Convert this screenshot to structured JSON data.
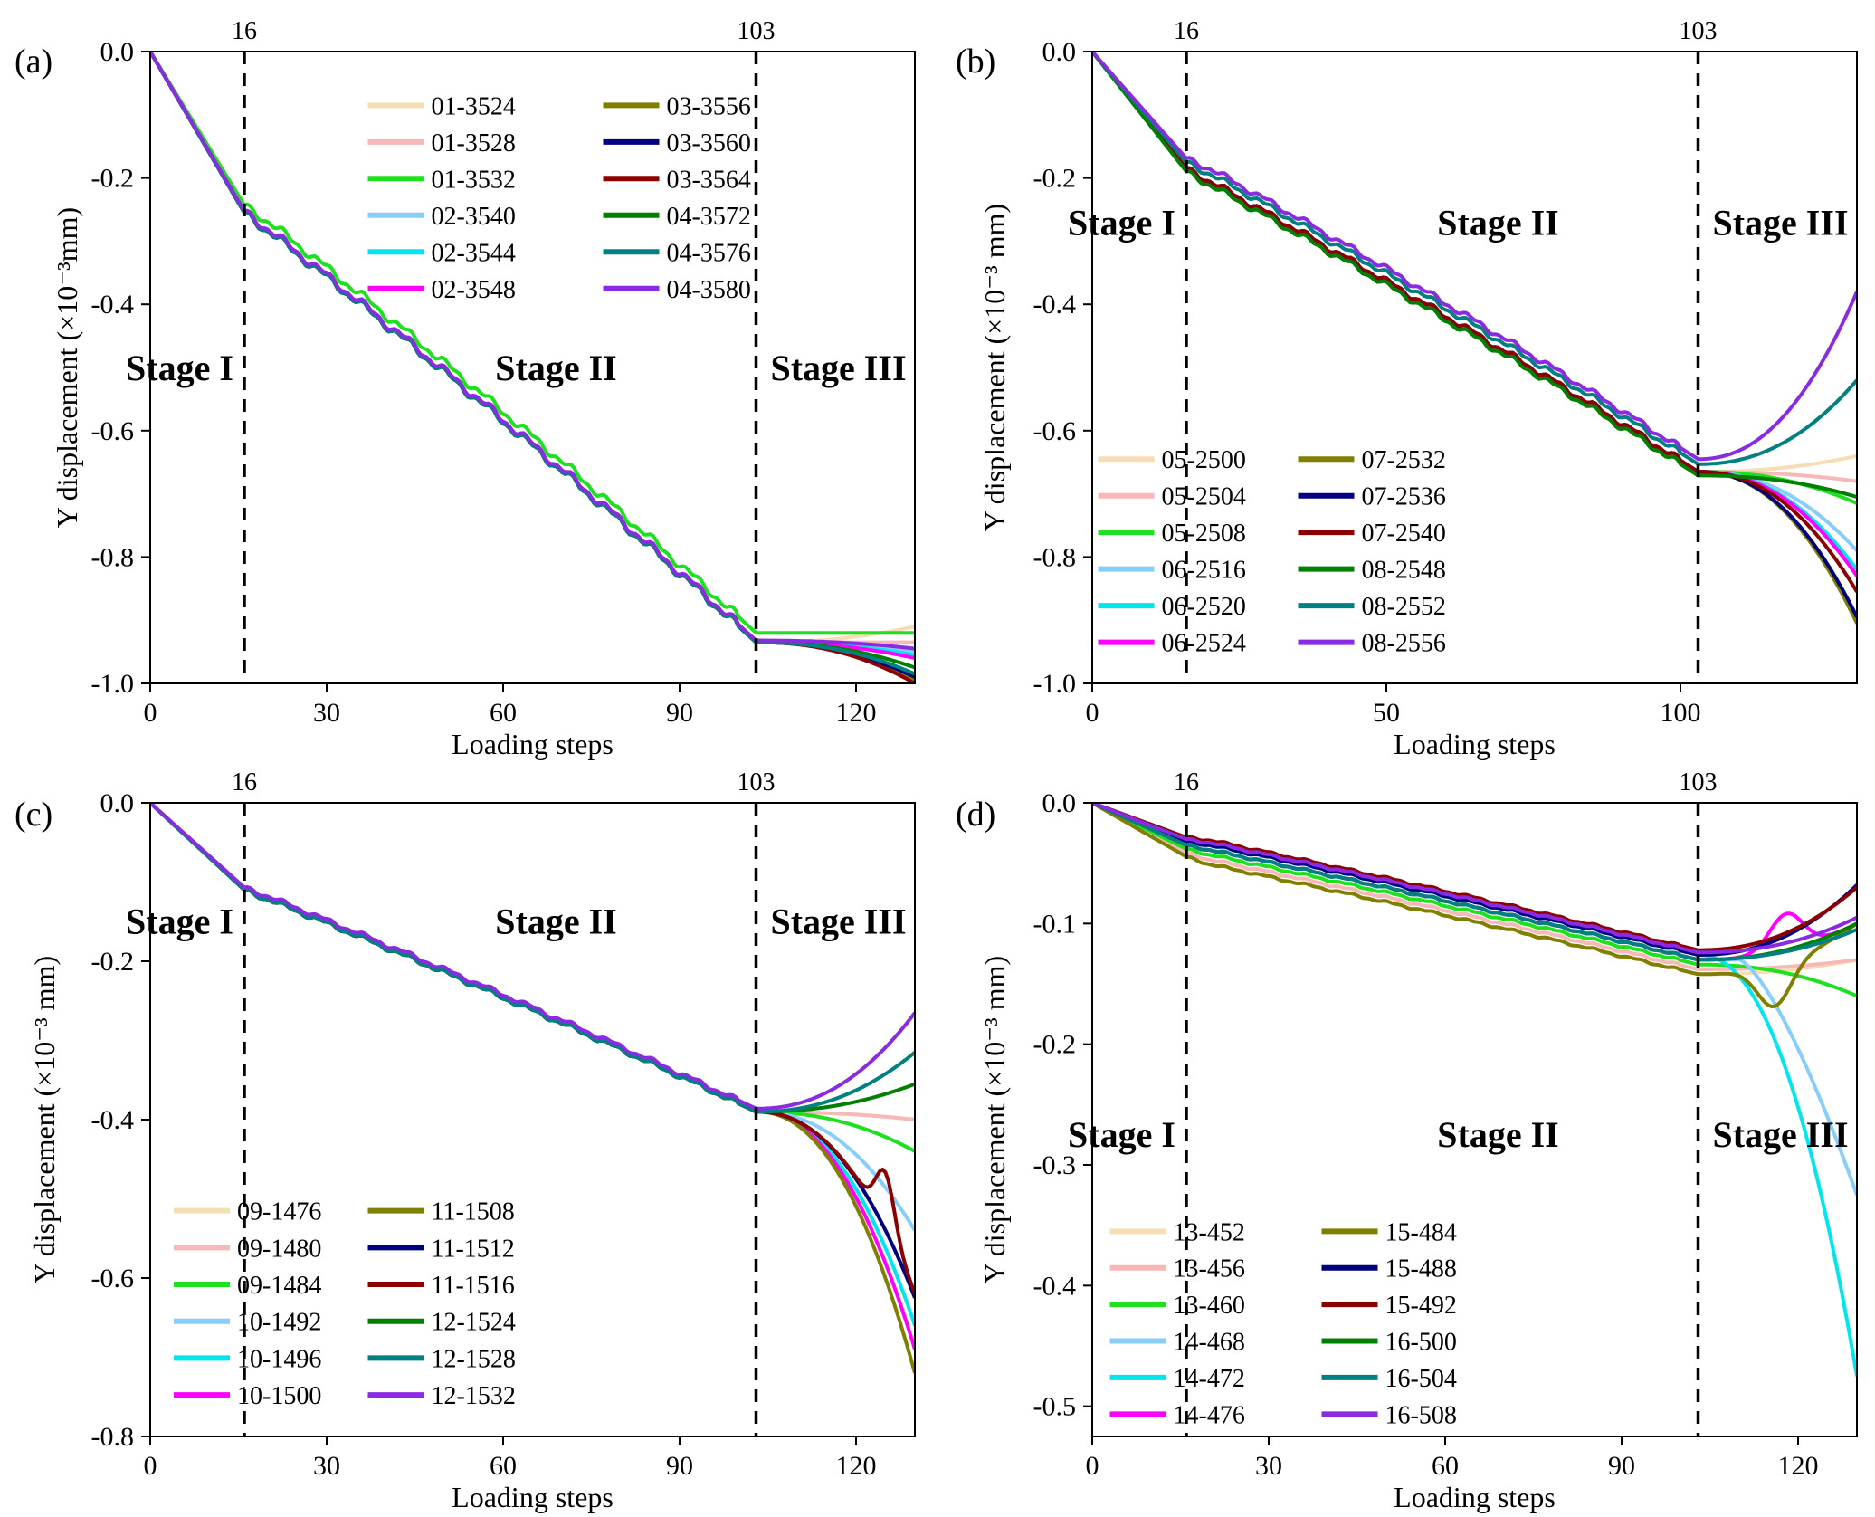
{
  "chart_data": [
    {
      "panel": "(a)",
      "type": "line",
      "xlabel": "Loading steps",
      "ylabel": "Y displacement (×10⁻³mm)",
      "xlim": [
        0,
        130
      ],
      "ylim": [
        -1.0,
        0.0
      ],
      "xticks": [
        0,
        30,
        60,
        90,
        120
      ],
      "yticks": [
        0.0,
        -0.2,
        -0.4,
        -0.6,
        -0.8,
        -1.0
      ],
      "xtick_labels": [
        "0",
        "30",
        "60",
        "90",
        "120"
      ],
      "ytick_labels": [
        "0.0",
        "-0.2",
        "-0.4",
        "-0.6",
        "-0.8",
        "-1.0"
      ],
      "vlines": [
        {
          "x": 16,
          "label": "16"
        },
        {
          "x": 103,
          "label": "103"
        }
      ],
      "stages": [
        {
          "label": "Stage I",
          "x": 5,
          "y": -0.52
        },
        {
          "label": "Stage II",
          "x": 69,
          "y": -0.52
        },
        {
          "label": "Stage III",
          "x": 117,
          "y": -0.52
        }
      ],
      "legend_columns": 2,
      "legend_anchor": {
        "x": 37,
        "y": -0.085
      },
      "legend_row_step": 0.058,
      "legend_col_step": 40,
      "common": {
        "b1": -0.255,
        "b2": -0.935
      },
      "series": [
        {
          "name": "01-3524",
          "color": "#F5DEB3",
          "end": -0.91,
          "offset": 0.0
        },
        {
          "name": "01-3528",
          "color": "#F7B8B8",
          "end": -0.935,
          "offset": 0.0
        },
        {
          "name": "01-3532",
          "color": "#1EE01E",
          "end": -0.92,
          "offset": 0.015
        },
        {
          "name": "02-3540",
          "color": "#87CEFA",
          "end": -0.95,
          "offset": 0.0
        },
        {
          "name": "02-3544",
          "color": "#00E5EE",
          "end": -0.955,
          "offset": 0.0
        },
        {
          "name": "02-3548",
          "color": "#FF00FF",
          "end": -0.96,
          "offset": 0.0
        },
        {
          "name": "03-3556",
          "color": "#808000",
          "end": -0.995,
          "offset": 0.0
        },
        {
          "name": "03-3560",
          "color": "#000080",
          "end": -0.99,
          "offset": 0.0
        },
        {
          "name": "03-3564",
          "color": "#8B0000",
          "end": -1.0,
          "offset": 0.0
        },
        {
          "name": "04-3572",
          "color": "#008000",
          "end": -0.975,
          "offset": 0.0
        },
        {
          "name": "04-3576",
          "color": "#008080",
          "end": -0.985,
          "offset": 0.0
        },
        {
          "name": "04-3580",
          "color": "#8A2BE2",
          "end": -0.945,
          "offset": 0.003
        }
      ]
    },
    {
      "panel": "(b)",
      "type": "line",
      "xlabel": "Loading steps",
      "ylabel": "Y displacement (×10⁻³ mm)",
      "xlim": [
        0,
        130
      ],
      "ylim": [
        -1.0,
        0.0
      ],
      "xticks": [
        0,
        50,
        100
      ],
      "yticks": [
        0.0,
        -0.2,
        -0.4,
        -0.6,
        -0.8,
        -1.0
      ],
      "xtick_labels": [
        "0",
        "50",
        "100"
      ],
      "ytick_labels": [
        "0.0",
        "-0.2",
        "-0.4",
        "-0.6",
        "-0.8",
        "-1.0"
      ],
      "vlines": [
        {
          "x": 16,
          "label": "16"
        },
        {
          "x": 103,
          "label": "103"
        }
      ],
      "stages": [
        {
          "label": "Stage I",
          "x": 5,
          "y": -0.29
        },
        {
          "label": "Stage II",
          "x": 69,
          "y": -0.29
        },
        {
          "label": "Stage III",
          "x": 117,
          "y": -0.29
        }
      ],
      "legend_columns": 2,
      "legend_anchor": {
        "x": 1,
        "y": -0.645
      },
      "legend_row_step": 0.058,
      "legend_col_step": 34,
      "common": {
        "b1": -0.185,
        "b2": -0.665
      },
      "series": [
        {
          "name": "05-2500",
          "color": "#F5DEB3",
          "end": -0.64,
          "offset": 0.0
        },
        {
          "name": "05-2504",
          "color": "#F7B8B8",
          "end": -0.68,
          "offset": 0.0
        },
        {
          "name": "05-2508",
          "color": "#1EE01E",
          "end": -0.715,
          "offset": 0.0
        },
        {
          "name": "06-2516",
          "color": "#87CEFA",
          "end": -0.79,
          "offset": 0.0
        },
        {
          "name": "06-2520",
          "color": "#00E5EE",
          "end": -0.82,
          "offset": 0.0
        },
        {
          "name": "06-2524",
          "color": "#FF00FF",
          "end": -0.83,
          "offset": 0.0
        },
        {
          "name": "07-2532",
          "color": "#808000",
          "end": -0.905,
          "offset": 0.0
        },
        {
          "name": "07-2536",
          "color": "#000080",
          "end": -0.895,
          "offset": 0.0
        },
        {
          "name": "07-2540",
          "color": "#8B0000",
          "end": -0.855,
          "offset": 0.0
        },
        {
          "name": "08-2548",
          "color": "#008000",
          "end": -0.705,
          "offset": -0.006
        },
        {
          "name": "08-2552",
          "color": "#008080",
          "end": -0.52,
          "offset": 0.012
        },
        {
          "name": "08-2556",
          "color": "#8A2BE2",
          "end": -0.38,
          "offset": 0.02
        }
      ]
    },
    {
      "panel": "(c)",
      "type": "line",
      "xlabel": "Loading steps",
      "ylabel": "Y displacement (×10⁻³ mm)",
      "xlim": [
        0,
        130
      ],
      "ylim": [
        -0.8,
        0.0
      ],
      "xticks": [
        0,
        30,
        60,
        90,
        120
      ],
      "yticks": [
        0.0,
        -0.2,
        -0.4,
        -0.6,
        -0.8
      ],
      "xtick_labels": [
        "0",
        "30",
        "60",
        "90",
        "120"
      ],
      "ytick_labels": [
        "0.0",
        "-0.2",
        "-0.4",
        "-0.6",
        "-0.8"
      ],
      "vlines": [
        {
          "x": 16,
          "label": "16"
        },
        {
          "x": 103,
          "label": "103"
        }
      ],
      "stages": [
        {
          "label": "Stage I",
          "x": 5,
          "y": -0.165
        },
        {
          "label": "Stage II",
          "x": 69,
          "y": -0.165
        },
        {
          "label": "Stage III",
          "x": 117,
          "y": -0.165
        }
      ],
      "legend_columns": 2,
      "legend_anchor": {
        "x": 4,
        "y": -0.515
      },
      "legend_row_step": 0.0465,
      "legend_col_step": 33,
      "common": {
        "b1": -0.11,
        "b2": -0.39
      },
      "series": [
        {
          "name": "09-1476",
          "color": "#F5DEB3",
          "end": -0.4,
          "offset": 0.0
        },
        {
          "name": "09-1480",
          "color": "#F7B8B8",
          "end": -0.4,
          "offset": 0.0
        },
        {
          "name": "09-1484",
          "color": "#1EE01E",
          "end": -0.44,
          "offset": 0.0
        },
        {
          "name": "10-1492",
          "color": "#87CEFA",
          "end": -0.54,
          "offset": 0.0
        },
        {
          "name": "10-1496",
          "color": "#00E5EE",
          "end": -0.66,
          "offset": 0.0
        },
        {
          "name": "10-1500",
          "color": "#FF00FF",
          "end": -0.69,
          "offset": 0.0
        },
        {
          "name": "11-1508",
          "color": "#808000",
          "end": -0.72,
          "offset": 0.0
        },
        {
          "name": "11-1512",
          "color": "#000080",
          "end": -0.625,
          "offset": 0.0
        },
        {
          "name": "11-1516",
          "color": "#8B0000",
          "end": -0.62,
          "offset": 0.0
        },
        {
          "name": "12-1524",
          "color": "#008000",
          "end": -0.355,
          "offset": 0.0
        },
        {
          "name": "12-1528",
          "color": "#008080",
          "end": -0.315,
          "offset": 0.0
        },
        {
          "name": "12-1532",
          "color": "#8A2BE2",
          "end": -0.265,
          "offset": 0.004
        }
      ]
    },
    {
      "panel": "(d)",
      "type": "line",
      "xlabel": "Loading steps",
      "ylabel": "Y displacement (×10⁻³ mm)",
      "xlim": [
        0,
        130
      ],
      "ylim": [
        -0.525,
        0.0
      ],
      "xticks": [
        0,
        30,
        60,
        90,
        120
      ],
      "yticks": [
        0.0,
        -0.1,
        -0.2,
        -0.3,
        -0.4,
        -0.5
      ],
      "xtick_labels": [
        "0",
        "30",
        "60",
        "90",
        "120"
      ],
      "ytick_labels": [
        "0.0",
        "-0.1",
        "-0.2",
        "-0.3",
        "-0.4",
        "-0.5"
      ],
      "vlines": [
        {
          "x": 16,
          "label": "16"
        },
        {
          "x": 103,
          "label": "103"
        }
      ],
      "stages": [
        {
          "label": "Stage I",
          "x": 5,
          "y": -0.285
        },
        {
          "label": "Stage II",
          "x": 69,
          "y": -0.285
        },
        {
          "label": "Stage III",
          "x": 117,
          "y": -0.285
        }
      ],
      "legend_columns": 2,
      "legend_anchor": {
        "x": 3,
        "y": -0.355
      },
      "legend_row_step": 0.0303,
      "legend_col_step": 36,
      "common": {
        "b1": -0.035,
        "b2": -0.13
      },
      "series": [
        {
          "name": "13-452",
          "color": "#F5DEB3",
          "end": -0.13,
          "offset": -0.012
        },
        {
          "name": "13-456",
          "color": "#F7B8B8",
          "end": -0.13,
          "offset": -0.008
        },
        {
          "name": "13-460",
          "color": "#1EE01E",
          "end": -0.16,
          "offset": -0.004
        },
        {
          "name": "14-468",
          "color": "#87CEFA",
          "end": -0.325,
          "offset": 0.0
        },
        {
          "name": "14-472",
          "color": "#00E5EE",
          "end": -0.475,
          "offset": 0.004
        },
        {
          "name": "14-476",
          "color": "#FF00FF",
          "end": -0.1,
          "offset": 0.0
        },
        {
          "name": "15-484",
          "color": "#808000",
          "end": -0.1,
          "offset": -0.012
        },
        {
          "name": "15-488",
          "color": "#000080",
          "end": -0.068,
          "offset": 0.004
        },
        {
          "name": "15-492",
          "color": "#8B0000",
          "end": -0.07,
          "offset": 0.008
        },
        {
          "name": "16-500",
          "color": "#008000",
          "end": -0.1,
          "offset": 0.0
        },
        {
          "name": "16-504",
          "color": "#008080",
          "end": -0.105,
          "offset": 0.0
        },
        {
          "name": "16-508",
          "color": "#8A2BE2",
          "end": -0.095,
          "offset": 0.006
        }
      ]
    }
  ]
}
